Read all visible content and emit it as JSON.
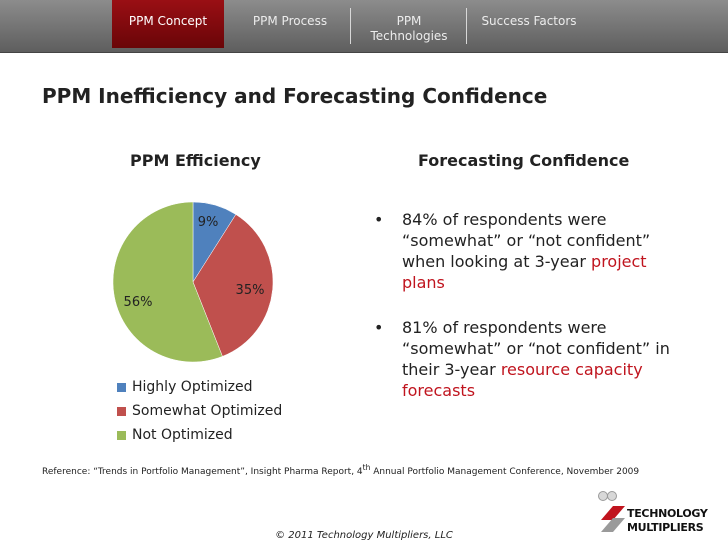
{
  "nav": {
    "tabs": [
      {
        "label": "PPM Concept",
        "active": true
      },
      {
        "label": "PPM Process",
        "active": false
      },
      {
        "label": "PPM",
        "label2": "Technologies",
        "active": false
      },
      {
        "label": "Success Factors",
        "active": false
      }
    ]
  },
  "slide": {
    "title": "PPM Inefficiency and Forecasting Confidence",
    "left_heading": "PPM Efficiency",
    "right_heading": "Forecasting Confidence"
  },
  "chart_data": {
    "type": "pie",
    "title": "PPM Efficiency",
    "categories": [
      "Highly Optimized",
      "Somewhat Optimized",
      "Not Optimized"
    ],
    "values": [
      9,
      35,
      56
    ],
    "data_labels": [
      "9%",
      "35%",
      "56%"
    ],
    "colors": [
      "#4f81bd",
      "#c0504d",
      "#9bbb59"
    ],
    "legend": "bottom"
  },
  "bullets": [
    {
      "marker": "•",
      "text": "84% of respondents were “somewhat” or “not confident” when looking at 3-year ",
      "highlight": "project plans"
    },
    {
      "marker": "•",
      "text": "81% of respondents were “somewhat” or “not confident” in their 3-year ",
      "highlight": "resource capacity forecasts"
    }
  ],
  "reference": {
    "prefix": "Reference: “Trends in Portfolio Management”, Insight Pharma Report, 4",
    "sup": "th",
    "suffix": " Annual Portfolio Management Conference, November 2009"
  },
  "footer": "© 2011 Technology Multipliers, LLC",
  "logo": {
    "line1": "TECHNOLOGY",
    "line2": "MULTIPLIERS"
  },
  "colors": {
    "highlight": "#c0141e",
    "active_tab": "#8b0c10",
    "nav_bg": "#6e6e6e"
  }
}
